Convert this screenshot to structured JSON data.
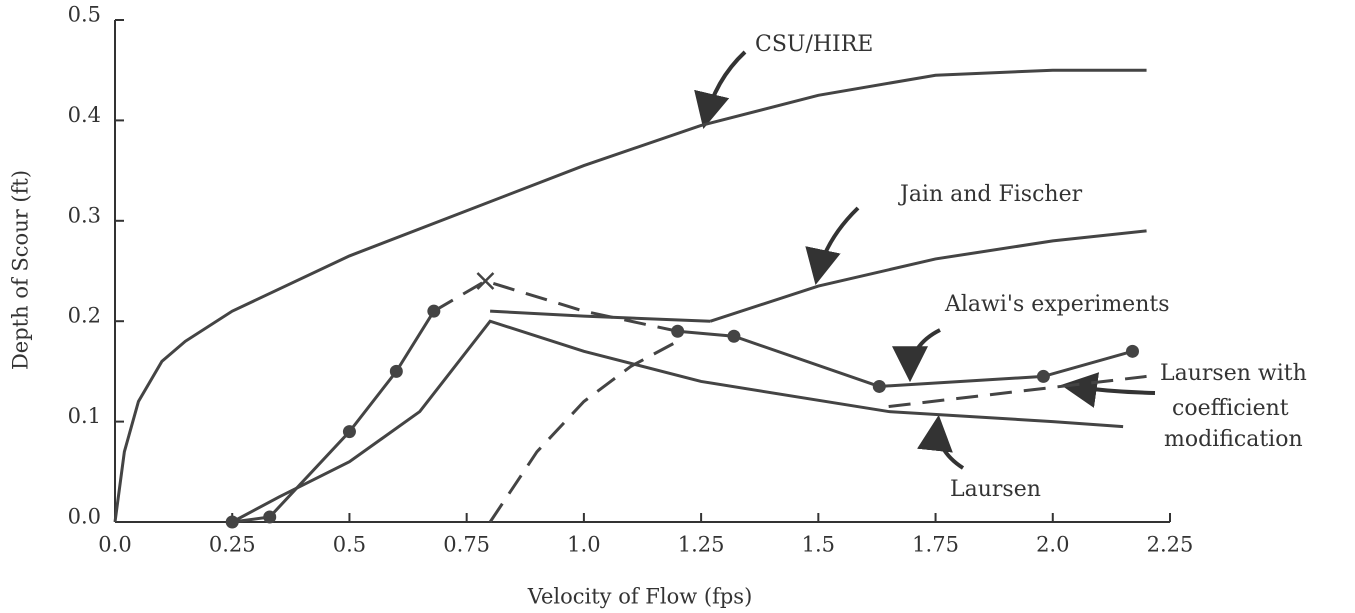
{
  "chart_data": {
    "type": "line",
    "x_label": "Velocity of Flow (fps)",
    "y_label": "Depth of Scour (ft)",
    "xlim": [
      0,
      2.25
    ],
    "ylim": [
      0,
      0.5
    ],
    "xticks": [
      {
        "value": 0,
        "label": "0.0"
      },
      0.25,
      0.5,
      0.75,
      {
        "value": 1,
        "label": "1.0"
      },
      1.25,
      1.5,
      1.75,
      {
        "value": 2,
        "label": "2.0"
      },
      2.25
    ],
    "yticks": [
      {
        "value": 0,
        "label": "0.0"
      },
      0.1,
      0.2,
      0.3,
      0.4,
      0.5
    ],
    "annotations": [
      "CSU/HIRE",
      "Jain and Fischer",
      "Alawi's experiments",
      "Laursen with",
      "coefficient",
      "modification",
      "Laursen"
    ],
    "series": [
      {
        "color": "#444",
        "dash": false,
        "marker": "none",
        "x": [
          0,
          0.02,
          0.05,
          0.1,
          0.15,
          0.25,
          0.5,
          0.75,
          1.0,
          1.25,
          1.5,
          1.75,
          2.0,
          2.2
        ],
        "values": [
          0,
          0.07,
          0.12,
          0.16,
          0.18,
          0.21,
          0.265,
          0.31,
          0.355,
          0.395,
          0.425,
          0.445,
          0.45,
          0.45
        ]
      },
      {
        "color": "#444",
        "dash": false,
        "marker": "none",
        "x": [
          1.27,
          1.5,
          1.75,
          2.0,
          2.2
        ],
        "values": [
          0.2,
          0.235,
          0.262,
          0.28,
          0.29
        ]
      },
      {
        "color": "#444",
        "dash": true,
        "marker": "none",
        "x": [
          0.8,
          0.9,
          1.0,
          1.1,
          1.2
        ],
        "values": [
          0,
          0.07,
          0.12,
          0.155,
          0.18
        ]
      },
      {
        "color": "#444",
        "dash": false,
        "marker": "none",
        "x": [
          0.25,
          0.35,
          0.5,
          0.65,
          0.8,
          1.0,
          1.25,
          1.65,
          2.0,
          2.15
        ],
        "values": [
          0,
          0.025,
          0.06,
          0.11,
          0.2,
          0.17,
          0.14,
          0.11,
          0.1,
          0.095
        ]
      },
      {
        "color": "#444",
        "dash": false,
        "marker": "none",
        "x": [
          0.8,
          1.0,
          1.27
        ],
        "values": [
          0.21,
          0.205,
          0.2
        ]
      },
      {
        "color": "#444",
        "dash": true,
        "marker": "none",
        "x": [
          0.68,
          0.79,
          1.0,
          1.2,
          null,
          1.65,
          2.2
        ],
        "values": [
          0.21,
          0.24,
          0.21,
          0.19,
          null,
          0.115,
          0.145
        ]
      },
      {
        "color": "#444",
        "dash": false,
        "marker": "x",
        "x": [
          0.79
        ],
        "values": [
          0.24
        ]
      },
      {
        "color": "#444",
        "dash": false,
        "marker": "circle",
        "x": [
          0.25,
          0.33,
          0.5,
          0.6,
          0.68,
          null,
          1.2,
          1.32,
          1.63,
          1.98,
          2.17
        ],
        "values": [
          0,
          0.005,
          0.09,
          0.15,
          0.21,
          null,
          0.19,
          0.185,
          0.135,
          0.145,
          0.17
        ]
      }
    ]
  }
}
